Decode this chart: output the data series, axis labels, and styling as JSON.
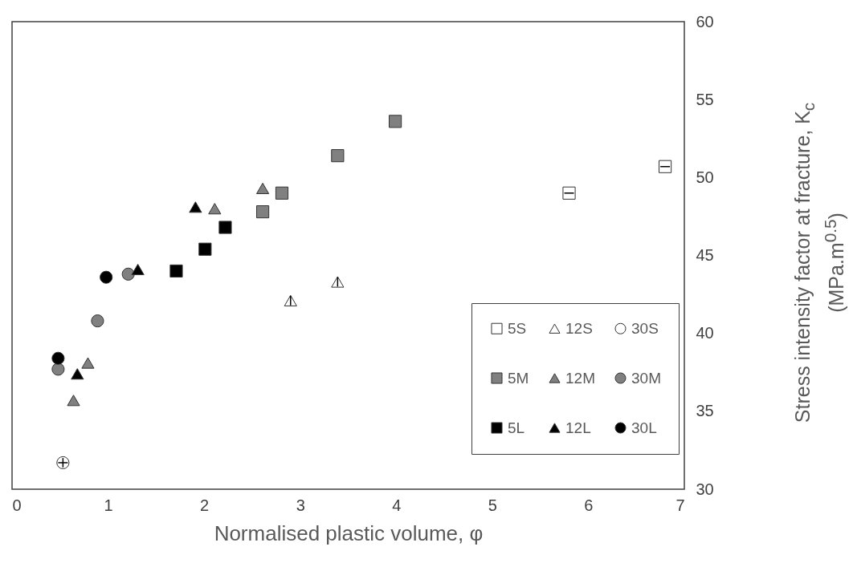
{
  "chart_data": {
    "type": "scatter",
    "xlabel": "Normalised plastic volume, φ",
    "ylabel": "Stress intensity factor at fracture, K$_{c}$\n(MPa.m$^{0.5}$)",
    "xlim": [
      0,
      7
    ],
    "xticks": [
      0,
      1,
      2,
      3,
      4,
      5,
      6,
      7
    ],
    "ylim": [
      30,
      60
    ],
    "yticks": [
      30,
      35,
      40,
      45,
      50,
      55,
      60
    ],
    "grid": false,
    "legend": "bottom right",
    "series": [
      {
        "name": "5S",
        "color": "#ffffff",
        "marker": "square",
        "x": [
          5.8,
          6.8
        ],
        "values": [
          49.0,
          50.7
        ],
        "xerrors": [
          0.05,
          0.05
        ]
      },
      {
        "name": "12S",
        "color": "#ffffff",
        "marker": "triangle",
        "x": [
          2.9,
          3.39
        ],
        "values": [
          42.1,
          43.3
        ],
        "errors": [
          0.3,
          0.3
        ]
      },
      {
        "name": "30S",
        "color": "#ffffff",
        "marker": "circle",
        "x": [
          0.53
        ],
        "values": [
          31.7
        ],
        "errors": [
          0.3
        ],
        "xerrors": [
          0.05
        ]
      },
      {
        "name": "5M",
        "color": "#808080",
        "marker": "square",
        "x": [
          2.61,
          2.81,
          3.39,
          3.99
        ],
        "values": [
          47.8,
          49.0,
          51.4,
          53.6
        ]
      },
      {
        "name": "12M",
        "color": "#808080",
        "marker": "triangle",
        "x": [
          0.64,
          0.79,
          2.11,
          2.61
        ],
        "values": [
          35.7,
          38.1,
          48.0,
          49.3
        ]
      },
      {
        "name": "30M",
        "color": "#808080",
        "marker": "circle",
        "x": [
          0.48,
          0.89,
          1.21
        ],
        "values": [
          37.7,
          40.8,
          43.8
        ]
      },
      {
        "name": "5L",
        "color": "#000000",
        "marker": "square",
        "x": [
          1.71,
          2.01,
          2.22
        ],
        "values": [
          44.0,
          45.4,
          46.8
        ]
      },
      {
        "name": "12L",
        "color": "#000000",
        "marker": "triangle",
        "x": [
          0.68,
          1.31,
          1.91
        ],
        "values": [
          37.4,
          44.1,
          48.1
        ]
      },
      {
        "name": "30L",
        "color": "#000000",
        "marker": "circle",
        "x": [
          0.48,
          0.98
        ],
        "values": [
          38.4,
          43.6
        ]
      }
    ]
  }
}
